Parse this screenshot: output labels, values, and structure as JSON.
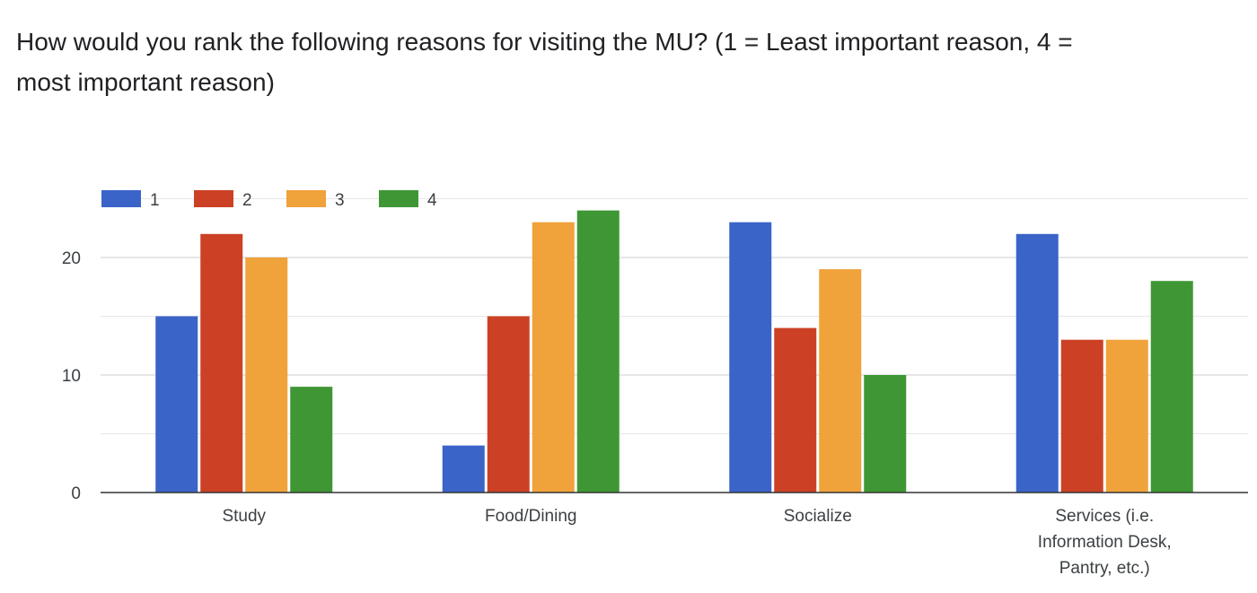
{
  "chart_data": {
    "type": "bar",
    "title": "How would you rank the following reasons for visiting the MU? (1 = Least important reason, 4 = most important reason)",
    "xlabel": "",
    "ylabel": "",
    "categories": [
      "Study",
      "Food/Dining",
      "Socialize",
      "Services (i.e. Information Desk, Pantry, etc.)"
    ],
    "series": [
      {
        "name": "1",
        "color": "#3b64c9",
        "values": [
          15,
          4,
          23,
          22
        ]
      },
      {
        "name": "2",
        "color": "#cc4125",
        "values": [
          22,
          15,
          14,
          13
        ]
      },
      {
        "name": "3",
        "color": "#f0a23b",
        "values": [
          20,
          23,
          19,
          13
        ]
      },
      {
        "name": "4",
        "color": "#3e9734",
        "values": [
          9,
          24,
          10,
          18
        ]
      }
    ],
    "ylim": [
      0,
      25
    ],
    "yticks": [
      0,
      10,
      20
    ],
    "grid": true,
    "legend": "top-left"
  }
}
